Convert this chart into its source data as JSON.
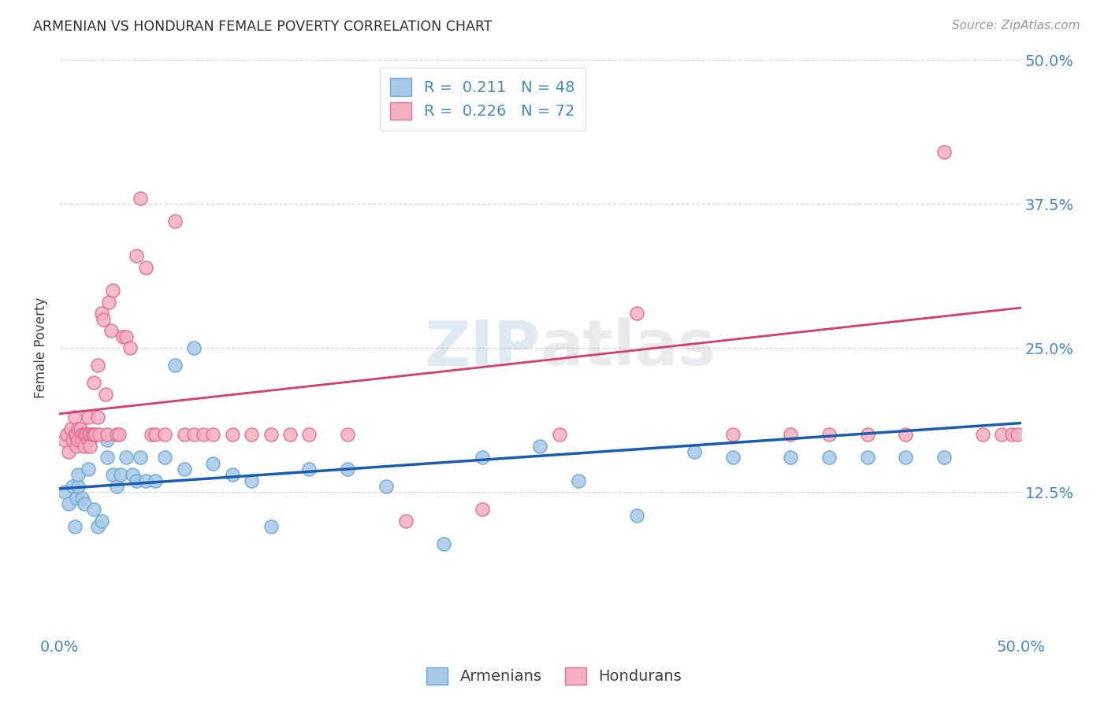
{
  "title": "ARMENIAN VS HONDURAN FEMALE POVERTY CORRELATION CHART",
  "source": "Source: ZipAtlas.com",
  "ylabel": "Female Poverty",
  "xlim": [
    0.0,
    0.5
  ],
  "ylim": [
    0.0,
    0.5
  ],
  "armenian_color": "#a8c8e8",
  "armenian_edge_color": "#6aaad4",
  "honduran_color": "#f4afc0",
  "honduran_edge_color": "#e07090",
  "armenian_line_color": "#1a5cb0",
  "honduran_line_color": "#d04070",
  "honduran_line_style": "-",
  "honduran_dash_style": "--",
  "r_armenian": 0.211,
  "n_armenian": 48,
  "r_honduran": 0.226,
  "n_honduran": 72,
  "title_color": "#303030",
  "source_color": "#999999",
  "tick_label_color": "#4488cc",
  "background_color": "#ffffff",
  "grid_color": "#cccccc",
  "arm_line_y0": 0.128,
  "arm_line_y1": 0.185,
  "hon_line_y0": 0.193,
  "hon_line_y1": 0.285,
  "arm_x": [
    0.003,
    0.005,
    0.007,
    0.008,
    0.009,
    0.01,
    0.01,
    0.012,
    0.013,
    0.015,
    0.016,
    0.018,
    0.02,
    0.022,
    0.025,
    0.025,
    0.028,
    0.03,
    0.032,
    0.035,
    0.038,
    0.04,
    0.042,
    0.045,
    0.05,
    0.055,
    0.06,
    0.065,
    0.07,
    0.08,
    0.09,
    0.1,
    0.11,
    0.13,
    0.15,
    0.17,
    0.2,
    0.22,
    0.25,
    0.27,
    0.3,
    0.33,
    0.35,
    0.38,
    0.4,
    0.42,
    0.44,
    0.46
  ],
  "arm_y": [
    0.125,
    0.115,
    0.13,
    0.095,
    0.12,
    0.13,
    0.14,
    0.12,
    0.115,
    0.145,
    0.17,
    0.11,
    0.095,
    0.1,
    0.17,
    0.155,
    0.14,
    0.13,
    0.14,
    0.155,
    0.14,
    0.135,
    0.155,
    0.135,
    0.135,
    0.155,
    0.235,
    0.145,
    0.25,
    0.15,
    0.14,
    0.135,
    0.095,
    0.145,
    0.145,
    0.13,
    0.08,
    0.155,
    0.165,
    0.135,
    0.105,
    0.16,
    0.155,
    0.155,
    0.155,
    0.155,
    0.155,
    0.155
  ],
  "hon_x": [
    0.003,
    0.004,
    0.005,
    0.006,
    0.007,
    0.008,
    0.008,
    0.009,
    0.009,
    0.01,
    0.01,
    0.011,
    0.012,
    0.012,
    0.013,
    0.013,
    0.014,
    0.015,
    0.015,
    0.015,
    0.016,
    0.016,
    0.017,
    0.018,
    0.018,
    0.019,
    0.02,
    0.02,
    0.021,
    0.022,
    0.023,
    0.024,
    0.025,
    0.026,
    0.027,
    0.028,
    0.03,
    0.031,
    0.033,
    0.035,
    0.037,
    0.04,
    0.042,
    0.045,
    0.048,
    0.05,
    0.055,
    0.06,
    0.065,
    0.07,
    0.075,
    0.08,
    0.09,
    0.1,
    0.11,
    0.12,
    0.13,
    0.15,
    0.18,
    0.22,
    0.26,
    0.3,
    0.35,
    0.38,
    0.4,
    0.42,
    0.44,
    0.46,
    0.48,
    0.49,
    0.495,
    0.498
  ],
  "hon_y": [
    0.17,
    0.175,
    0.16,
    0.18,
    0.17,
    0.175,
    0.19,
    0.165,
    0.175,
    0.17,
    0.18,
    0.18,
    0.175,
    0.17,
    0.175,
    0.165,
    0.175,
    0.17,
    0.175,
    0.19,
    0.175,
    0.165,
    0.175,
    0.22,
    0.175,
    0.175,
    0.235,
    0.19,
    0.175,
    0.28,
    0.275,
    0.21,
    0.175,
    0.29,
    0.265,
    0.3,
    0.175,
    0.175,
    0.26,
    0.26,
    0.25,
    0.33,
    0.38,
    0.32,
    0.175,
    0.175,
    0.175,
    0.36,
    0.175,
    0.175,
    0.175,
    0.175,
    0.175,
    0.175,
    0.175,
    0.175,
    0.175,
    0.175,
    0.1,
    0.11,
    0.175,
    0.28,
    0.175,
    0.175,
    0.175,
    0.175,
    0.175,
    0.42,
    0.175,
    0.175,
    0.175,
    0.175
  ]
}
